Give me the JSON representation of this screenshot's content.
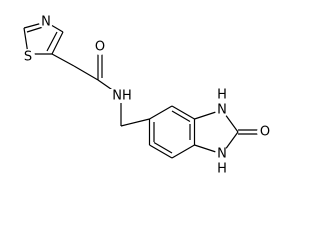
{
  "molecule": {
    "atoms": [
      {
        "label": "N"
      },
      {
        "label": "S"
      },
      {
        "label": "O"
      },
      {
        "label": "NH"
      },
      {
        "label": "H"
      },
      {
        "label": "N"
      },
      {
        "label": "O"
      },
      {
        "label": "N"
      },
      {
        "label": "H"
      }
    ]
  }
}
